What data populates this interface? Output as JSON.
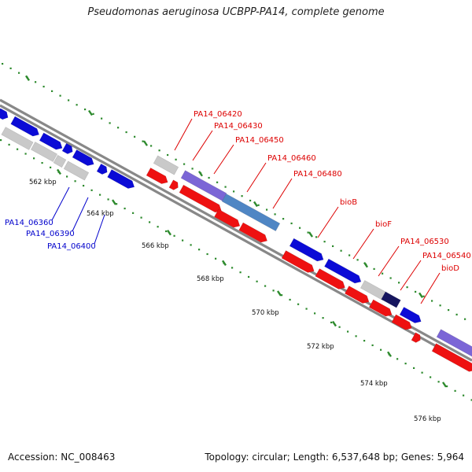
{
  "title": "Pseudomonas aeruginosa UCBPP-PA14, complete genome",
  "footer": {
    "accession": "Accession: NC_008463",
    "summary": "Topology: circular; Length: 6,537,648 bp; Genes: 5,964"
  },
  "colors": {
    "forward_gene": "#0b0bd6",
    "reverse_gene": "#ee1111",
    "pseudo_gene": "#c9c9c9",
    "purple_gene": "#7b66d6",
    "steel_gene": "#4f86c4",
    "navy_gene": "#15155e",
    "backbone": "#888888",
    "tick": "#2d8a2d",
    "label_red": "#dd0000",
    "label_blue": "#0000cc"
  },
  "ticks": [
    {
      "label": "562 kbp"
    },
    {
      "label": "564 kbp"
    },
    {
      "label": "566 kbp"
    },
    {
      "label": "568 kbp"
    },
    {
      "label": "570 kbp"
    },
    {
      "label": "572 kbp"
    },
    {
      "label": "574 kbp"
    },
    {
      "label": "576 kbp"
    }
  ],
  "gene_labels_top": [
    {
      "label": "PA14_06420"
    },
    {
      "label": "PA14_06430"
    },
    {
      "label": "PA14_06450"
    },
    {
      "label": "PA14_06460"
    },
    {
      "label": "PA14_06480"
    },
    {
      "label": "bioB"
    },
    {
      "label": "bioF"
    },
    {
      "label": "PA14_06530"
    },
    {
      "label": "PA14_06540"
    },
    {
      "label": "bioD"
    }
  ],
  "gene_labels_bottom": [
    {
      "label": "PA14_06360"
    },
    {
      "label": "PA14_06390"
    },
    {
      "label": "PA14_06400"
    }
  ]
}
